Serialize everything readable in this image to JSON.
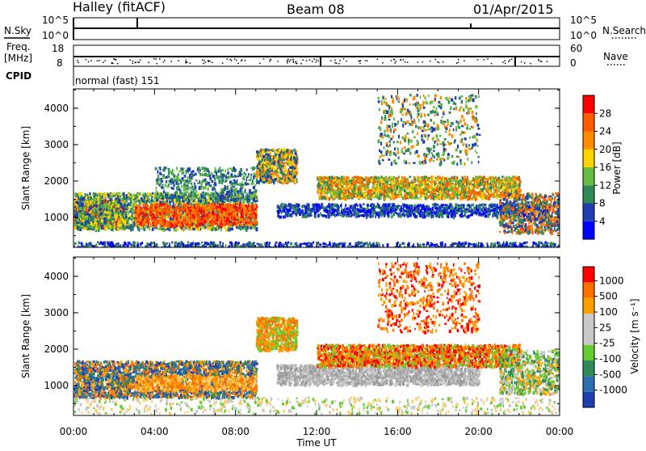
{
  "header": {
    "station": "Halley (fitACF)",
    "beam": "Beam 08",
    "date": "01/Apr/2015"
  },
  "side_labels": {
    "nsky": "N.Sky",
    "freq_line1": "Freq.",
    "freq_line2": "[MHz]",
    "cpid": "CPID",
    "nsearch": "N.Search",
    "nave": "Nave"
  },
  "top_axes": {
    "noise_left_ticks": [
      "10^5",
      "10^0"
    ],
    "noise_right_ticks": [
      "10^5",
      "10^0"
    ],
    "freq_left_ticks": [
      "18",
      "8"
    ],
    "nave_right_ticks": [
      "60",
      "0"
    ]
  },
  "cpid_text": "normal (fast) 151",
  "chart_data": [
    {
      "type": "heatmap",
      "name": "power",
      "ylabel": "Slant Range [km]",
      "yticks": [
        1000,
        2000,
        3000,
        4000
      ],
      "ylim": [
        180,
        4530
      ],
      "xlim": [
        0,
        24
      ],
      "colorbar": {
        "label": "Power [dB]",
        "ticks": [
          "4",
          "8",
          "12",
          "16",
          "20",
          "24",
          "28"
        ],
        "colors": [
          "#0000ff",
          "#1f3fb0",
          "#2e8b57",
          "#66bb44",
          "#ffd400",
          "#ff8c00",
          "#ff5a00",
          "#ff0000"
        ]
      }
    },
    {
      "type": "heatmap",
      "name": "velocity",
      "ylabel": "Slant Range [km]",
      "yticks": [
        1000,
        2000,
        3000,
        4000
      ],
      "ylim": [
        180,
        4530
      ],
      "xlim": [
        0,
        24
      ],
      "colorbar": {
        "label": "Velocity [m s⁻¹]",
        "ticks": [
          "1000",
          "500",
          "100",
          "25",
          "-25",
          "-100",
          "-500",
          "-1000"
        ],
        "colors": [
          "#1f3fb0",
          "#2a6fb0",
          "#2e8b57",
          "#66cc33",
          "#c8c8c8",
          "#c8c8c8",
          "#ffa000",
          "#ff7000",
          "#ff0000"
        ]
      }
    }
  ],
  "xaxis": {
    "ticks": [
      "00:00",
      "04:00",
      "08:00",
      "12:00",
      "16:00",
      "20:00",
      "00:00"
    ],
    "label": "Time UT"
  }
}
